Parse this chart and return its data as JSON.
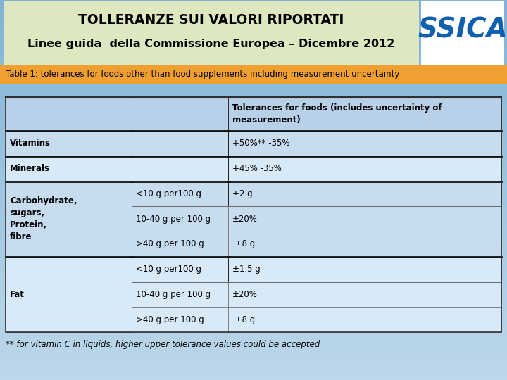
{
  "title_line1": "TOLLERANZE SUI VALORI RIPORTATI",
  "title_line2": "Linee guida  della Commissione Europea – Dicembre 2012",
  "subtitle": "Table 1: tolerances for foods other than food supplements including measurement uncertainty",
  "header_col3": "Tolerances for foods (includes uncertainty of\nmeasurement)",
  "rows": [
    {
      "col1": "Vitamins",
      "col2": "",
      "col3": "+50%** -35%"
    },
    {
      "col1": "Minerals",
      "col2": "",
      "col3": "+45% -35%"
    },
    {
      "col1": "Carbohydrate,\nsugars,\nProtein,\nfibre",
      "col2": "<10 g per100 g",
      "col3": "±2 g"
    },
    {
      "col1": "",
      "col2": "10-40 g per 100 g",
      "col3": "±20%"
    },
    {
      "col1": "",
      "col2": ">40 g per 100 g",
      "col3": " ±8 g"
    },
    {
      "col1": "Fat",
      "col2": "<10 g per100 g",
      "col3": "±1.5 g"
    },
    {
      "col1": "",
      "col2": "10-40 g per 100 g",
      "col3": "±20%"
    },
    {
      "col1": "",
      "col2": ">40 g per 100 g",
      "col3": " ±8 g"
    }
  ],
  "footnote": "** for vitamin C in liquids, higher upper tolerance values could be accepted",
  "bg_color_top": "#a8c8e0",
  "bg_color_bot": "#c8dff0",
  "title_bg": "#dde8c0",
  "subtitle_bg": "#f0a030",
  "table_header_bg": "#b8d0e8",
  "row_bg_light": "#c8dcf0",
  "row_bg_mid": "#d8eaf8",
  "ssica_blue": "#1060b0",
  "ssica_green": "#30a030",
  "fig_w": 7.2,
  "fig_h": 5.4,
  "dpi": 100
}
